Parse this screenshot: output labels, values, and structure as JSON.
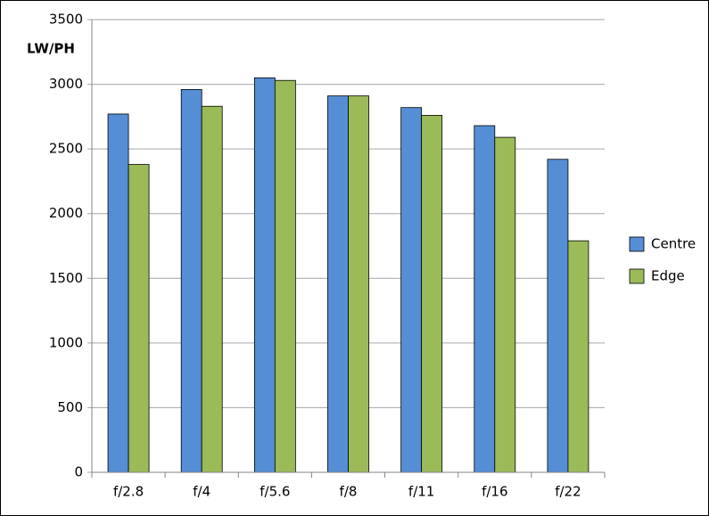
{
  "chart_data": {
    "type": "bar",
    "y_label": "LW/PH",
    "categories": [
      "f/2.8",
      "f/4",
      "f/5.6",
      "f/8",
      "f/11",
      "f/16",
      "f/22"
    ],
    "series": [
      {
        "name": "Centre",
        "color": "#558ed5",
        "values": [
          2770,
          2960,
          3050,
          2910,
          2820,
          2680,
          2420
        ]
      },
      {
        "name": "Edge",
        "color": "#9bbb59",
        "values": [
          2380,
          2830,
          3030,
          2910,
          2760,
          2590,
          1790
        ]
      }
    ],
    "ylim": [
      0,
      3500
    ],
    "yticks": [
      0,
      500,
      1000,
      1500,
      2000,
      2500,
      3000,
      3500
    ],
    "grid": true,
    "legend": "right"
  }
}
